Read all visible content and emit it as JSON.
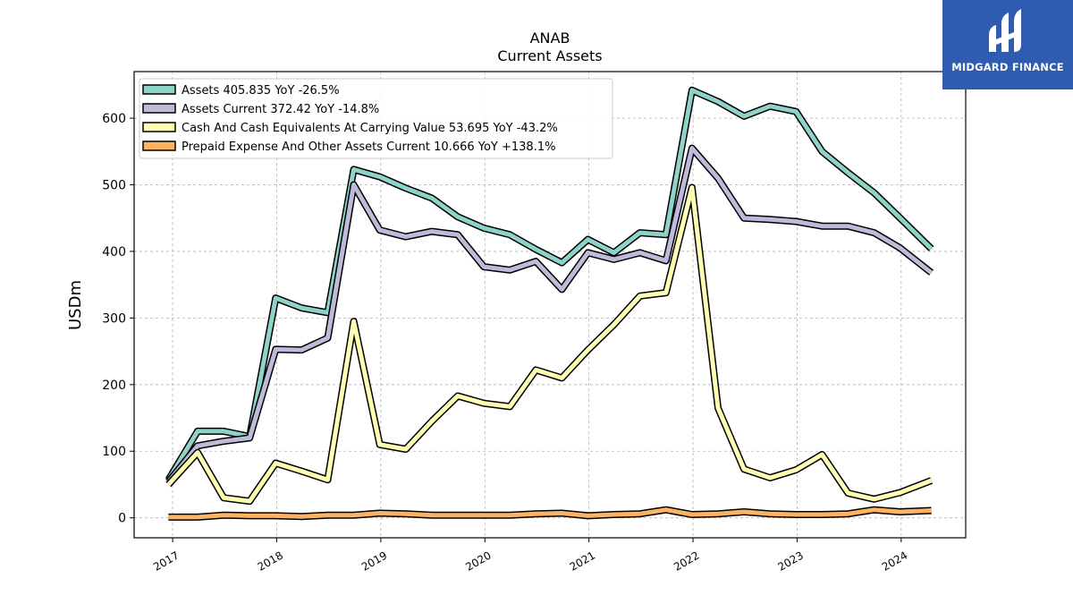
{
  "brand": {
    "name": "MIDGARD FINANCE",
    "color": "#2f5bb0"
  },
  "chart_data": {
    "type": "line",
    "title": "ANAB",
    "subtitle": "Current  Assets",
    "xlabel": "",
    "ylabel": "USDm",
    "ylim": [
      -30,
      670
    ],
    "xlim": [
      2016.63,
      2024.62
    ],
    "yticks": [
      0,
      100,
      200,
      300,
      400,
      500,
      600
    ],
    "xticks": [
      "2017",
      "2018",
      "2019",
      "2020",
      "2021",
      "2022",
      "2023",
      "2024"
    ],
    "grid": true,
    "legend_position": "top-left",
    "x": [
      2016.96,
      2017.24,
      2017.49,
      2017.74,
      2017.99,
      2018.24,
      2018.49,
      2018.74,
      2018.99,
      2019.24,
      2019.49,
      2019.74,
      2019.99,
      2020.24,
      2020.49,
      2020.74,
      2020.99,
      2021.24,
      2021.49,
      2021.74,
      2021.99,
      2022.24,
      2022.49,
      2022.74,
      2022.99,
      2023.24,
      2023.49,
      2023.74,
      2023.99,
      2024.29
    ],
    "series": [
      {
        "name": "Assets  405.835 YoY -26.5%",
        "color": "#8dd3c7",
        "values": [
          57,
          130,
          130,
          122,
          330,
          315,
          308,
          523,
          512,
          495,
          480,
          452,
          435,
          425,
          403,
          383,
          418,
          398,
          428,
          425,
          642,
          625,
          603,
          618,
          610,
          550,
          518,
          488,
          450,
          404
        ]
      },
      {
        "name": "Assets Current  372.42 YoY -14.8%",
        "color": "#bebada",
        "values": [
          54,
          108,
          115,
          120,
          253,
          252,
          270,
          500,
          432,
          422,
          430,
          425,
          377,
          372,
          385,
          343,
          398,
          388,
          398,
          386,
          555,
          510,
          450,
          448,
          445,
          438,
          438,
          428,
          405,
          368
        ]
      },
      {
        "name": "Cash And Cash Equivalents At Carrying Value  53.695 YoY -43.2%",
        "color": "#ffffb3",
        "values": [
          50,
          98,
          30,
          25,
          82,
          70,
          57,
          295,
          110,
          103,
          145,
          183,
          172,
          167,
          222,
          210,
          252,
          290,
          333,
          338,
          496,
          165,
          73,
          60,
          72,
          95,
          37,
          28,
          38,
          56
        ]
      },
      {
        "name": "Prepaid Expense And Other Assets Current  10.666 YoY +138.1%",
        "color": "#fdb462",
        "values": [
          1,
          1,
          4,
          3,
          3,
          2,
          4,
          4,
          7,
          6,
          4,
          4,
          4,
          4,
          6,
          7,
          3,
          5,
          6,
          12,
          5,
          6,
          9,
          6,
          5,
          5,
          6,
          12,
          9,
          11
        ]
      }
    ]
  }
}
